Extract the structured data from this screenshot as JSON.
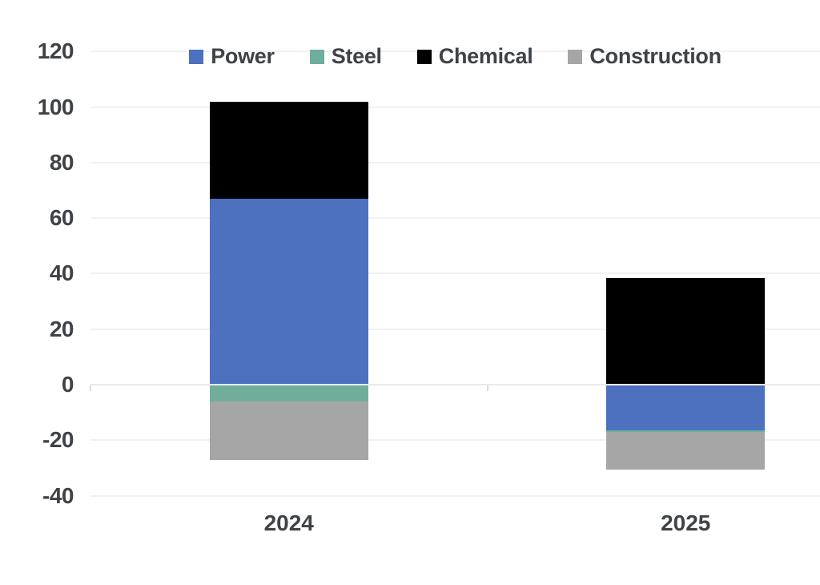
{
  "chart_data": {
    "type": "bar",
    "stacked": true,
    "title": "",
    "xlabel": "",
    "ylabel": "",
    "categories": [
      "2024",
      "2025"
    ],
    "series": [
      {
        "name": "Power",
        "color": "#4d70bf",
        "values": [
          67,
          -16.5
        ]
      },
      {
        "name": "Steel",
        "color": "#6fae9c",
        "values": [
          -6,
          -0.5
        ]
      },
      {
        "name": "Chemical",
        "color": "#000000",
        "values": [
          35,
          38.5
        ]
      },
      {
        "name": "Construction",
        "color": "#a6a6a6",
        "values": [
          -21,
          -13.5
        ]
      }
    ],
    "ylim": [
      -40,
      120
    ],
    "yticks": [
      120,
      100,
      80,
      60,
      40,
      20,
      0,
      -20,
      -40
    ],
    "grid": true,
    "legend_position": "top-center"
  },
  "colors": {
    "background": "#ffffff",
    "axis_text": "#3f4347",
    "gridline": "#f1f1f1",
    "zero_line": "#e9e9e9",
    "tick_mark": "#dcdcdc"
  }
}
